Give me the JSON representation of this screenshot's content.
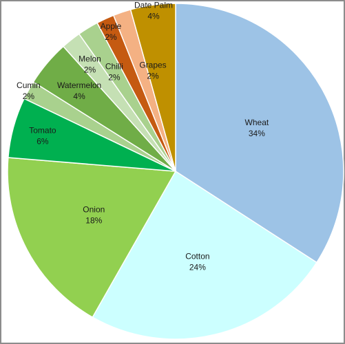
{
  "chart_data": {
    "type": "pie",
    "title": "",
    "start_angle_deg": 0,
    "direction": "clockwise",
    "slices": [
      {
        "label": "Wheat",
        "pct_text": "34%",
        "value": 34.0,
        "color": "#9dc3e6"
      },
      {
        "label": "Cotton",
        "pct_text": "24%",
        "value": 24.0,
        "color": "#ccffff"
      },
      {
        "label": "Onion",
        "pct_text": "18%",
        "value": 18.0,
        "color": "#92d050"
      },
      {
        "label": "Tomato",
        "pct_text": "6%",
        "value": 5.8,
        "color": "#00b050"
      },
      {
        "label": "Cumin",
        "pct_text": "2%",
        "value": 1.8,
        "color": "#a9d18e"
      },
      {
        "label": "Watermelon",
        "pct_text": "4%",
        "value": 4.4,
        "color": "#70ad47"
      },
      {
        "label": "Melon",
        "pct_text": "2%",
        "value": 1.9,
        "color": "#c5e0b4"
      },
      {
        "label": "Chilli",
        "pct_text": "2%",
        "value": 2.0,
        "color": "#a9d18e"
      },
      {
        "label": "Apple",
        "pct_text": "2%",
        "value": 1.7,
        "color": "#c55a11"
      },
      {
        "label": "Grapes",
        "pct_text": "2%",
        "value": 1.7,
        "color": "#f4b183"
      },
      {
        "label": "Date Palm",
        "pct_text": "4%",
        "value": 4.3,
        "color": "#bf9000"
      }
    ],
    "legend": "none",
    "slice_border_color": "#ffffff"
  }
}
